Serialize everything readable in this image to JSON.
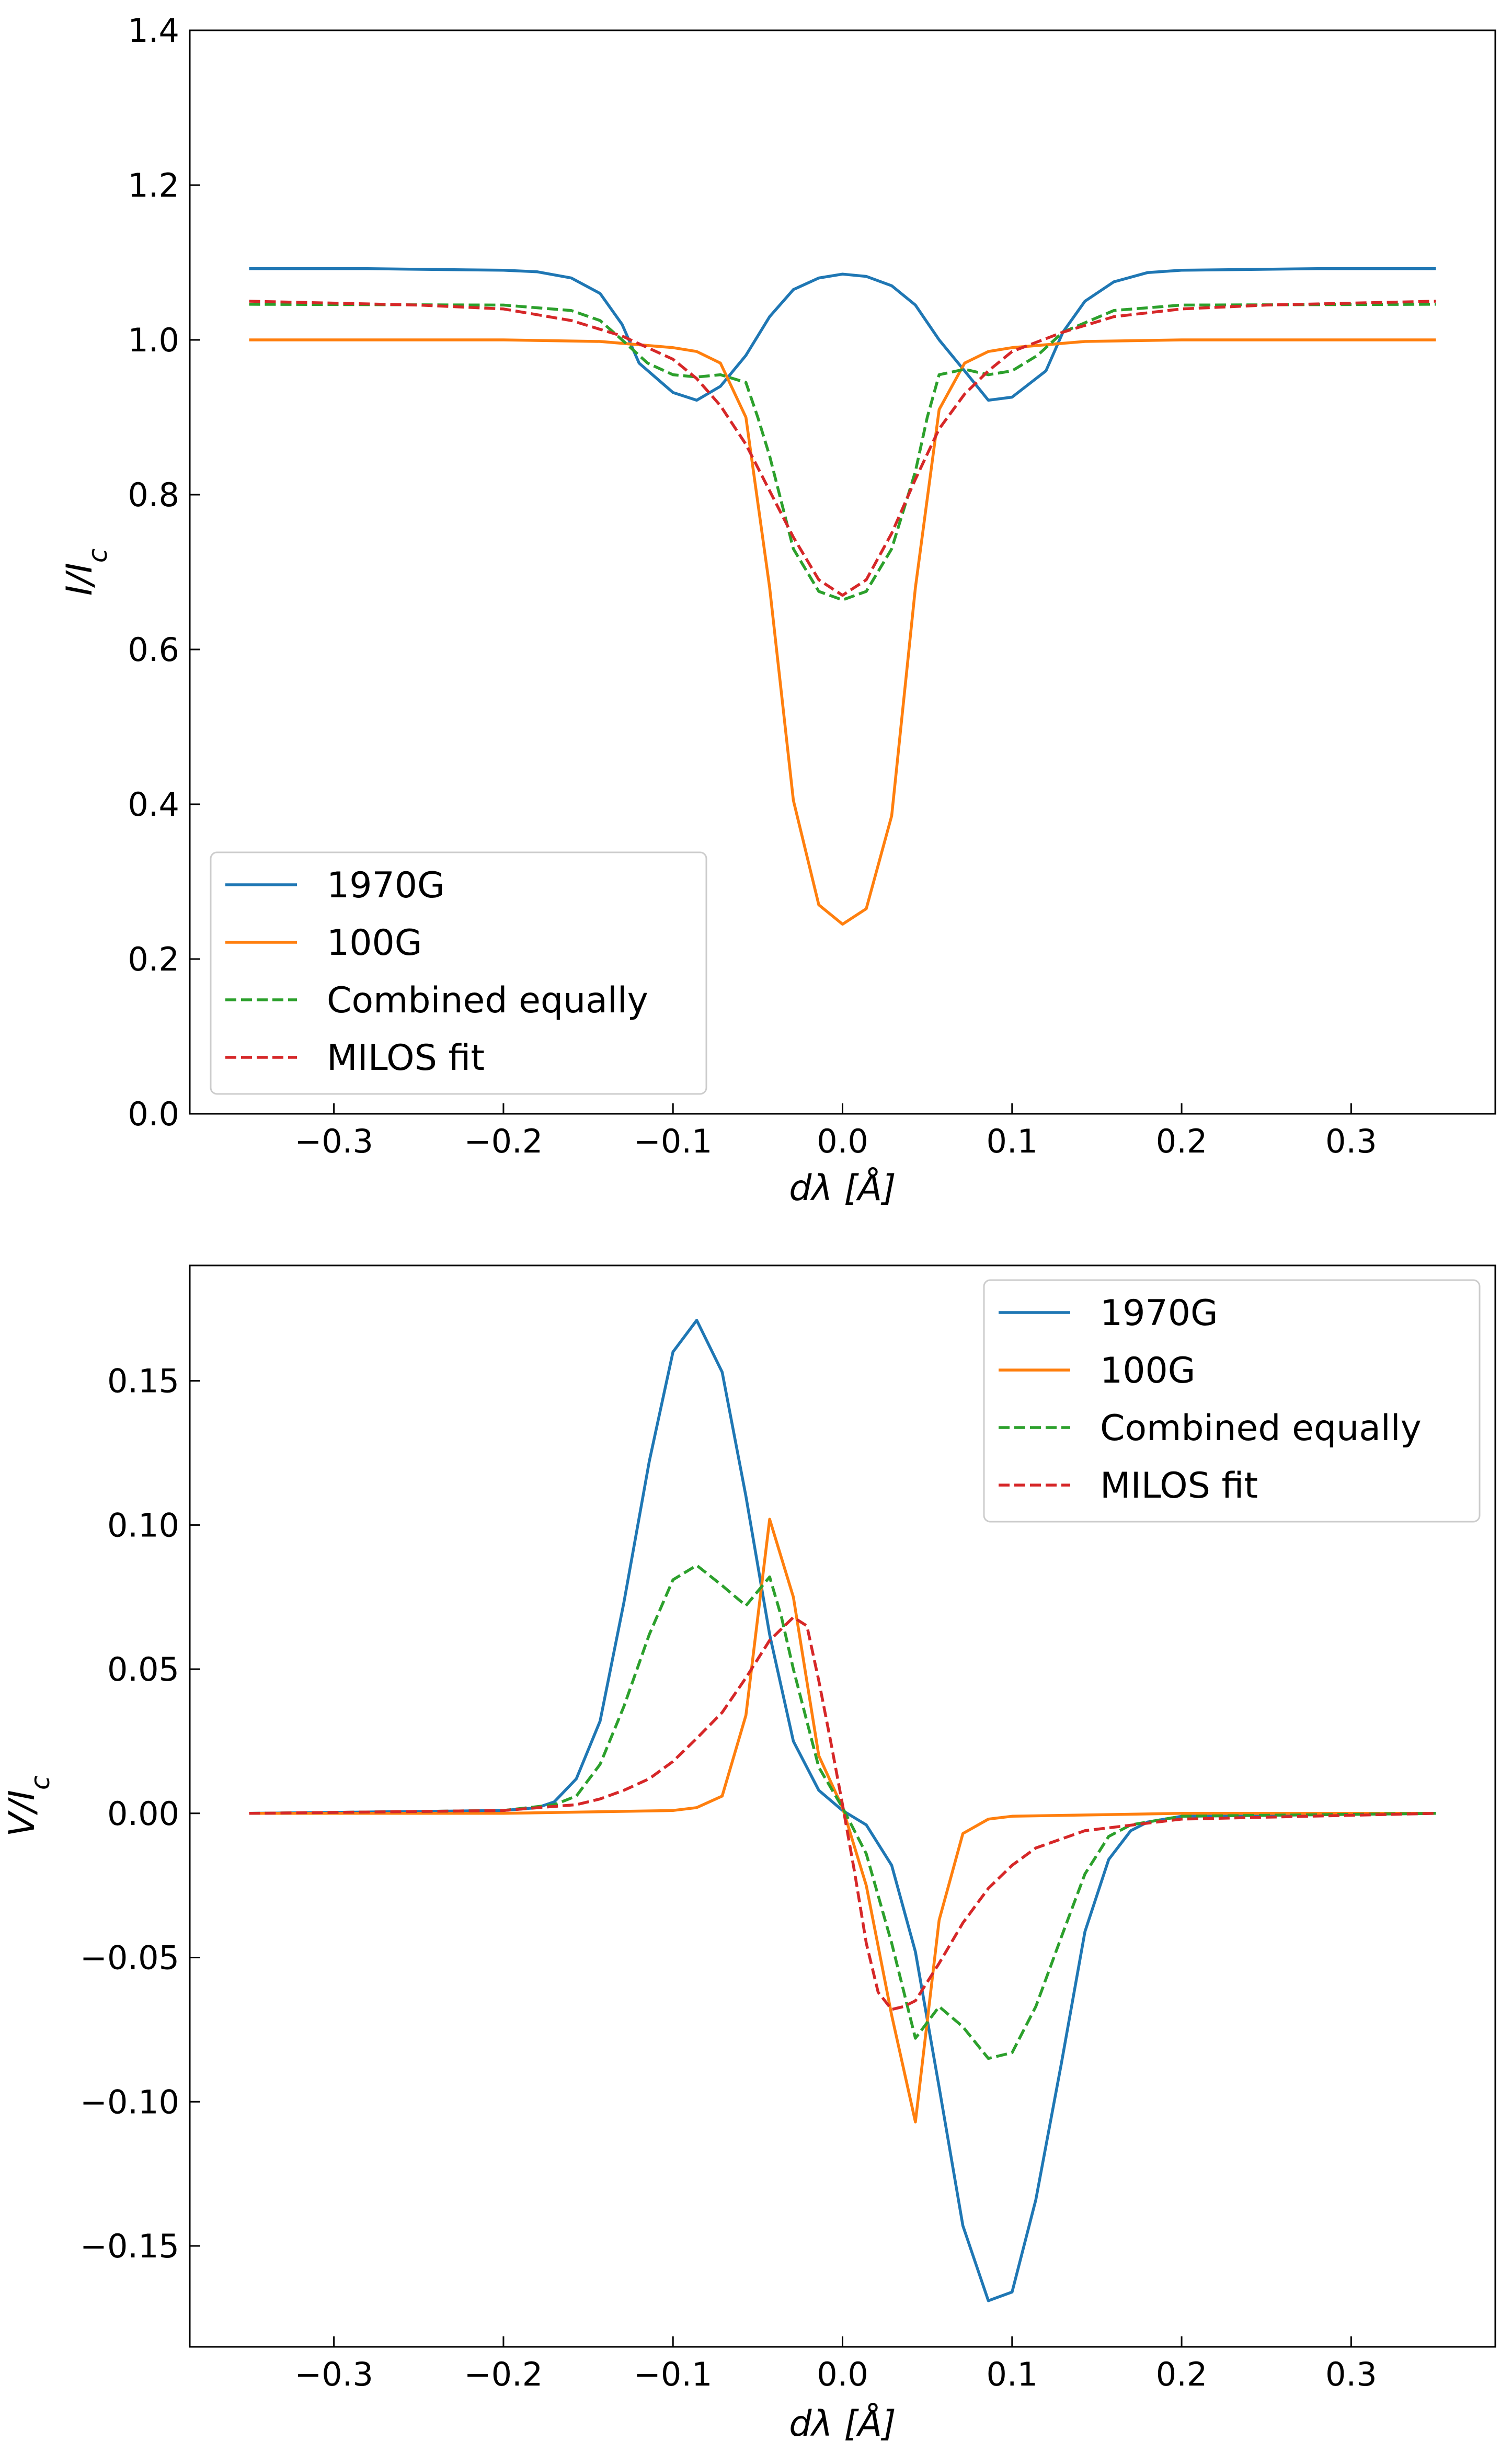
{
  "chart_data": [
    {
      "type": "line",
      "title": "",
      "xlabel": "dλ [Å]",
      "ylabel": "I/I_c",
      "xlim": [
        -0.385,
        0.385
      ],
      "ylim": [
        0.0,
        1.4
      ],
      "xticks": [
        -0.3,
        -0.2,
        -0.1,
        0.0,
        0.1,
        0.2,
        0.3
      ],
      "xtick_labels": [
        "−0.3",
        "−0.2",
        "−0.1",
        "0.0",
        "0.1",
        "0.2",
        "0.3"
      ],
      "yticks": [
        0.0,
        0.2,
        0.4,
        0.6,
        0.8,
        1.0,
        1.2,
        1.4
      ],
      "ytick_labels": [
        "0.0",
        "0.2",
        "0.4",
        "0.6",
        "0.8",
        "1.0",
        "1.2",
        "1.4"
      ],
      "grid": false,
      "legend_position": "lower-left",
      "series": [
        {
          "name": "1970G",
          "color": "#1f77b4",
          "style": "solid",
          "x": [
            -0.35,
            -0.28,
            -0.2,
            -0.18,
            -0.16,
            -0.143,
            -0.13,
            -0.12,
            -0.1,
            -0.086,
            -0.072,
            -0.057,
            -0.043,
            -0.029,
            -0.014,
            0.0,
            0.014,
            0.029,
            0.043,
            0.057,
            0.072,
            0.086,
            0.1,
            0.12,
            0.13,
            0.143,
            0.16,
            0.18,
            0.2,
            0.28,
            0.35
          ],
          "y": [
            1.092,
            1.092,
            1.09,
            1.088,
            1.08,
            1.06,
            1.02,
            0.97,
            0.932,
            0.922,
            0.94,
            0.98,
            1.03,
            1.065,
            1.08,
            1.085,
            1.082,
            1.07,
            1.045,
            1.0,
            0.96,
            0.922,
            0.926,
            0.96,
            1.01,
            1.05,
            1.075,
            1.087,
            1.09,
            1.092,
            1.092
          ]
        },
        {
          "name": "100G",
          "color": "#ff7f0e",
          "style": "solid",
          "x": [
            -0.35,
            -0.2,
            -0.143,
            -0.1,
            -0.086,
            -0.072,
            -0.057,
            -0.043,
            -0.029,
            -0.014,
            0.0,
            0.014,
            0.029,
            0.043,
            0.057,
            0.072,
            0.086,
            0.1,
            0.143,
            0.2,
            0.35
          ],
          "y": [
            1.0,
            1.0,
            0.998,
            0.99,
            0.985,
            0.97,
            0.9,
            0.68,
            0.405,
            0.27,
            0.245,
            0.265,
            0.385,
            0.68,
            0.91,
            0.97,
            0.985,
            0.99,
            0.998,
            1.0,
            1.0
          ]
        },
        {
          "name": "Combined equally",
          "color": "#2ca02c",
          "style": "dashed",
          "x": [
            -0.35,
            -0.2,
            -0.16,
            -0.143,
            -0.13,
            -0.115,
            -0.1,
            -0.086,
            -0.072,
            -0.057,
            -0.05,
            -0.043,
            -0.036,
            -0.029,
            -0.014,
            0.0,
            0.014,
            0.029,
            0.043,
            0.05,
            0.057,
            0.072,
            0.086,
            0.1,
            0.115,
            0.13,
            0.16,
            0.2,
            0.35
          ],
          "y": [
            1.046,
            1.045,
            1.038,
            1.025,
            1.0,
            0.97,
            0.955,
            0.952,
            0.955,
            0.945,
            0.9,
            0.85,
            0.79,
            0.73,
            0.675,
            0.664,
            0.675,
            0.73,
            0.83,
            0.9,
            0.955,
            0.962,
            0.955,
            0.96,
            0.98,
            1.01,
            1.038,
            1.045,
            1.046
          ]
        },
        {
          "name": "MILOS fit",
          "color": "#d62728",
          "style": "dashed",
          "x": [
            -0.35,
            -0.25,
            -0.2,
            -0.16,
            -0.13,
            -0.1,
            -0.086,
            -0.072,
            -0.057,
            -0.043,
            -0.029,
            -0.014,
            0.0,
            0.014,
            0.029,
            0.043,
            0.057,
            0.072,
            0.086,
            0.1,
            0.13,
            0.16,
            0.2,
            0.25,
            0.35
          ],
          "y": [
            1.05,
            1.045,
            1.04,
            1.025,
            1.005,
            0.975,
            0.95,
            0.915,
            0.865,
            0.805,
            0.745,
            0.69,
            0.67,
            0.69,
            0.75,
            0.82,
            0.885,
            0.93,
            0.96,
            0.985,
            1.01,
            1.03,
            1.04,
            1.045,
            1.05
          ]
        }
      ]
    },
    {
      "type": "line",
      "title": "",
      "xlabel": "dλ [Å]",
      "ylabel": "V/I_c",
      "xlim": [
        -0.385,
        0.385
      ],
      "ylim": [
        -0.185,
        0.19
      ],
      "xticks": [
        -0.3,
        -0.2,
        -0.1,
        0.0,
        0.1,
        0.2,
        0.3
      ],
      "xtick_labels": [
        "−0.3",
        "−0.2",
        "−0.1",
        "0.0",
        "0.1",
        "0.2",
        "0.3"
      ],
      "yticks": [
        -0.15,
        -0.1,
        -0.05,
        0.0,
        0.05,
        0.1,
        0.15
      ],
      "ytick_labels": [
        "−0.15",
        "−0.10",
        "−0.05",
        "0.00",
        "0.05",
        "0.10",
        "0.15"
      ],
      "grid": false,
      "legend_position": "upper-right",
      "series": [
        {
          "name": "1970G",
          "color": "#1f77b4",
          "style": "solid",
          "x": [
            -0.35,
            -0.2,
            -0.18,
            -0.17,
            -0.157,
            -0.143,
            -0.129,
            -0.114,
            -0.1,
            -0.086,
            -0.071,
            -0.057,
            -0.043,
            -0.029,
            -0.014,
            0.0,
            0.014,
            0.029,
            0.043,
            0.057,
            0.071,
            0.086,
            0.1,
            0.114,
            0.129,
            0.143,
            0.157,
            0.17,
            0.18,
            0.2,
            0.35
          ],
          "y": [
            0.0,
            0.001,
            0.002,
            0.004,
            0.012,
            0.032,
            0.073,
            0.122,
            0.16,
            0.171,
            0.153,
            0.11,
            0.062,
            0.025,
            0.008,
            0.001,
            -0.004,
            -0.018,
            -0.048,
            -0.095,
            -0.143,
            -0.169,
            -0.166,
            -0.134,
            -0.087,
            -0.041,
            -0.016,
            -0.006,
            -0.003,
            -0.001,
            0.0
          ]
        },
        {
          "name": "100G",
          "color": "#ff7f0e",
          "style": "solid",
          "x": [
            -0.35,
            -0.2,
            -0.1,
            -0.086,
            -0.071,
            -0.057,
            -0.043,
            -0.029,
            -0.014,
            0.0,
            0.014,
            0.029,
            0.043,
            0.057,
            0.071,
            0.086,
            0.1,
            0.2,
            0.35
          ],
          "y": [
            0.0,
            0.0,
            0.001,
            0.002,
            0.006,
            0.034,
            0.102,
            0.075,
            0.02,
            0.002,
            -0.025,
            -0.07,
            -0.107,
            -0.037,
            -0.007,
            -0.002,
            -0.001,
            0.0,
            0.0
          ]
        },
        {
          "name": "Combined equally",
          "color": "#2ca02c",
          "style": "dashed",
          "x": [
            -0.35,
            -0.2,
            -0.17,
            -0.157,
            -0.143,
            -0.129,
            -0.114,
            -0.1,
            -0.086,
            -0.071,
            -0.057,
            -0.043,
            -0.036,
            -0.029,
            -0.014,
            0.0,
            0.014,
            0.029,
            0.043,
            0.057,
            0.071,
            0.086,
            0.1,
            0.114,
            0.129,
            0.143,
            0.157,
            0.17,
            0.2,
            0.35
          ],
          "y": [
            0.0,
            0.001,
            0.003,
            0.006,
            0.017,
            0.037,
            0.062,
            0.081,
            0.086,
            0.079,
            0.072,
            0.082,
            0.068,
            0.05,
            0.016,
            0.002,
            -0.014,
            -0.045,
            -0.078,
            -0.067,
            -0.074,
            -0.085,
            -0.083,
            -0.067,
            -0.043,
            -0.021,
            -0.008,
            -0.004,
            -0.001,
            0.0
          ]
        },
        {
          "name": "MILOS fit",
          "color": "#d62728",
          "style": "dashed",
          "x": [
            -0.35,
            -0.2,
            -0.157,
            -0.143,
            -0.129,
            -0.114,
            -0.1,
            -0.086,
            -0.071,
            -0.057,
            -0.043,
            -0.029,
            -0.021,
            -0.014,
            -0.007,
            0.0,
            0.007,
            0.014,
            0.021,
            0.029,
            0.036,
            0.043,
            0.057,
            0.071,
            0.086,
            0.1,
            0.114,
            0.143,
            0.2,
            0.35
          ],
          "y": [
            0.0,
            0.001,
            0.003,
            0.005,
            0.008,
            0.012,
            0.018,
            0.026,
            0.035,
            0.047,
            0.06,
            0.068,
            0.065,
            0.046,
            0.025,
            0.003,
            -0.02,
            -0.045,
            -0.062,
            -0.068,
            -0.067,
            -0.065,
            -0.052,
            -0.038,
            -0.026,
            -0.018,
            -0.012,
            -0.006,
            -0.002,
            0.0
          ]
        }
      ]
    }
  ]
}
